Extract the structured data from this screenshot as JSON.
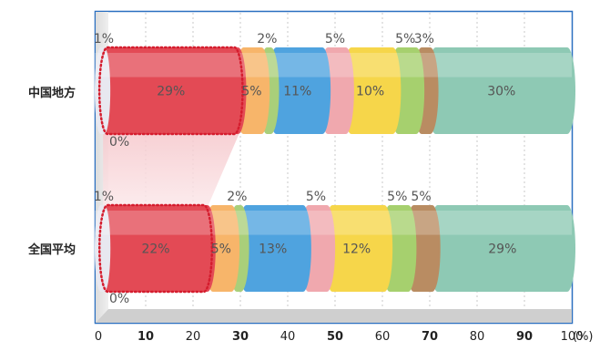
{
  "chart_data": {
    "type": "bar",
    "stacked": true,
    "orientation": "horizontal",
    "categories": [
      "中国地方",
      "全国平均"
    ],
    "segments": [
      {
        "colors": [
          "#e8e8f0",
          "#e34a55",
          "#f7b56a",
          "#a9cf7a",
          "#4fa3df",
          "#f0a8ae",
          "#f6d64a",
          "#a6d06e",
          "#b98c62",
          "#8ec9b4"
        ],
        "values": [
          1,
          29,
          5,
          2,
          11,
          5,
          10,
          5,
          3,
          30
        ],
        "labels": [
          "1%",
          "29%",
          "5%",
          "2%",
          "11%",
          "5%",
          "10%",
          "5%",
          "3%",
          "30%"
        ]
      },
      {
        "colors": [
          "#e8e8f0",
          "#e34a55",
          "#f7b56a",
          "#a9cf7a",
          "#4fa3df",
          "#f0a8ae",
          "#f6d64a",
          "#a6d06e",
          "#b98c62",
          "#8ec9b4"
        ],
        "values": [
          1,
          22,
          5,
          2,
          13,
          5,
          12,
          5,
          5,
          29
        ],
        "labels": [
          "1%",
          "22%",
          "5%",
          "2%",
          "13%",
          "5%",
          "12%",
          "5%",
          "5%",
          "29%"
        ]
      }
    ],
    "zero_labels": [
      "0%",
      "0%"
    ],
    "xlim": [
      0,
      100
    ],
    "x_ticks": [
      "0",
      "10",
      "20",
      "30",
      "40",
      "50",
      "60",
      "70",
      "80",
      "90",
      "100"
    ],
    "x_ticks_bold": [
      false,
      true,
      false,
      true,
      false,
      true,
      false,
      true,
      false,
      true,
      false
    ],
    "x_unit": "(%)",
    "grid": true,
    "highlight": "first segment outlined with red dotted border"
  }
}
